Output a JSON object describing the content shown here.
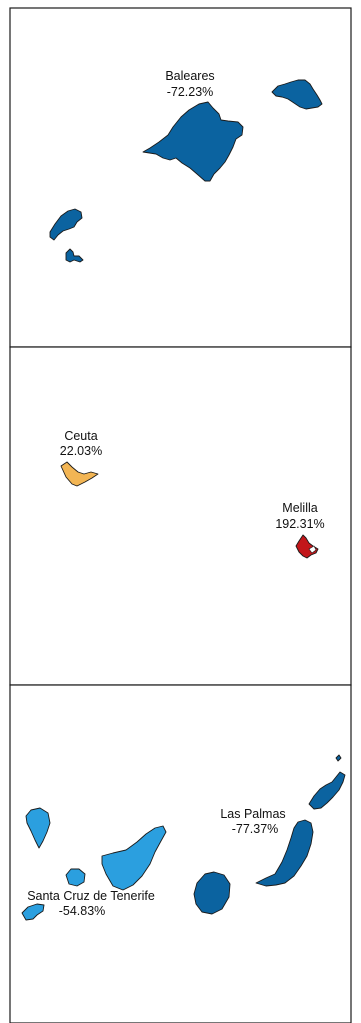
{
  "panels": [
    {
      "name": "baleares-panel",
      "regions": [
        {
          "label": "Baleares",
          "value": "-72.23%",
          "color": "#0b63a0"
        }
      ]
    },
    {
      "name": "ceuta-melilla-panel",
      "regions": [
        {
          "label": "Ceuta",
          "value": "22.03%",
          "color": "#f2b554"
        },
        {
          "label": "Melilla",
          "value": "192.31%",
          "color": "#c2161a"
        }
      ]
    },
    {
      "name": "canarias-panel",
      "regions": [
        {
          "label": "Las Palmas",
          "value": "-77.37%",
          "color": "#0b63a0"
        },
        {
          "label": "Santa Cruz de Tenerife",
          "value": "-54.83%",
          "color": "#2b9fdf"
        }
      ]
    }
  ]
}
